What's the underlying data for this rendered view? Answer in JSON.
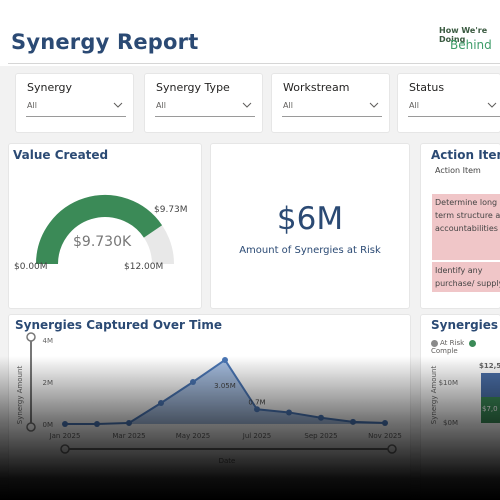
{
  "header": {
    "title": "Synergy Report",
    "status_label": "How We're Doing",
    "status_value": "Behind"
  },
  "filters": [
    {
      "label": "Synergy",
      "value": "All"
    },
    {
      "label": "Synergy Type",
      "value": "All"
    },
    {
      "label": "Workstream",
      "value": "All"
    },
    {
      "label": "Status",
      "value": "All"
    }
  ],
  "value_created": {
    "title": "Value Created",
    "center": "$9.730K",
    "min": "$0.00M",
    "max": "$12.00M",
    "target": "$9.73M",
    "fraction": 0.81,
    "fill_color": "#3b8a57",
    "track_color": "#e8e8e8"
  },
  "risk_card": {
    "value": "$6M",
    "caption": "Amount of Synergies at Risk"
  },
  "action_items": {
    "title": "Action Items",
    "column": "Action Item",
    "rows": [
      "Determine long term structure and accountabilities",
      "Identify any purchase/ supply"
    ]
  },
  "captured_chart": {
    "title": "Synergies Captured Over Time",
    "ylabel": "Synergy Amount",
    "xlabel": "Date",
    "y_ticks": [
      "0M",
      "2M",
      "4M"
    ],
    "x_ticks": [
      "Jan 2025",
      "Mar 2025",
      "May 2025",
      "Jul 2025",
      "Sep 2025",
      "Nov 2025"
    ],
    "data_labels": [
      "3.05M",
      "0.7M"
    ],
    "line_color": "#4a76b5",
    "area_color": "#5b86c4"
  },
  "breakdown_chart": {
    "title": "Synergies B",
    "legend": [
      {
        "label": "At Risk",
        "color": "#8a8a8a"
      },
      {
        "label": "Comple",
        "color": "#3b8a57"
      }
    ],
    "ylabel": "Synergy Amount",
    "y_ticks": [
      "$10M",
      "$0M"
    ],
    "bar_label": "$12,5",
    "bar_inner_label": "$7,0",
    "colors": [
      "#4a6fa8",
      "#3b8a57"
    ]
  },
  "chart_data": {
    "type": "area",
    "title": "Synergies Captured Over Time",
    "xlabel": "Date",
    "ylabel": "Synergy Amount",
    "x": [
      "Jan 2025",
      "Feb 2025",
      "Mar 2025",
      "Apr 2025",
      "May 2025",
      "Jun 2025",
      "Jul 2025",
      "Aug 2025",
      "Sep 2025",
      "Oct 2025",
      "Nov 2025"
    ],
    "values": [
      0.0,
      0.0,
      0.05,
      1.0,
      2.0,
      3.05,
      0.7,
      0.55,
      0.3,
      0.1,
      0.05
    ],
    "ylim": [
      0,
      4
    ],
    "y_unit": "M",
    "grid": false
  }
}
